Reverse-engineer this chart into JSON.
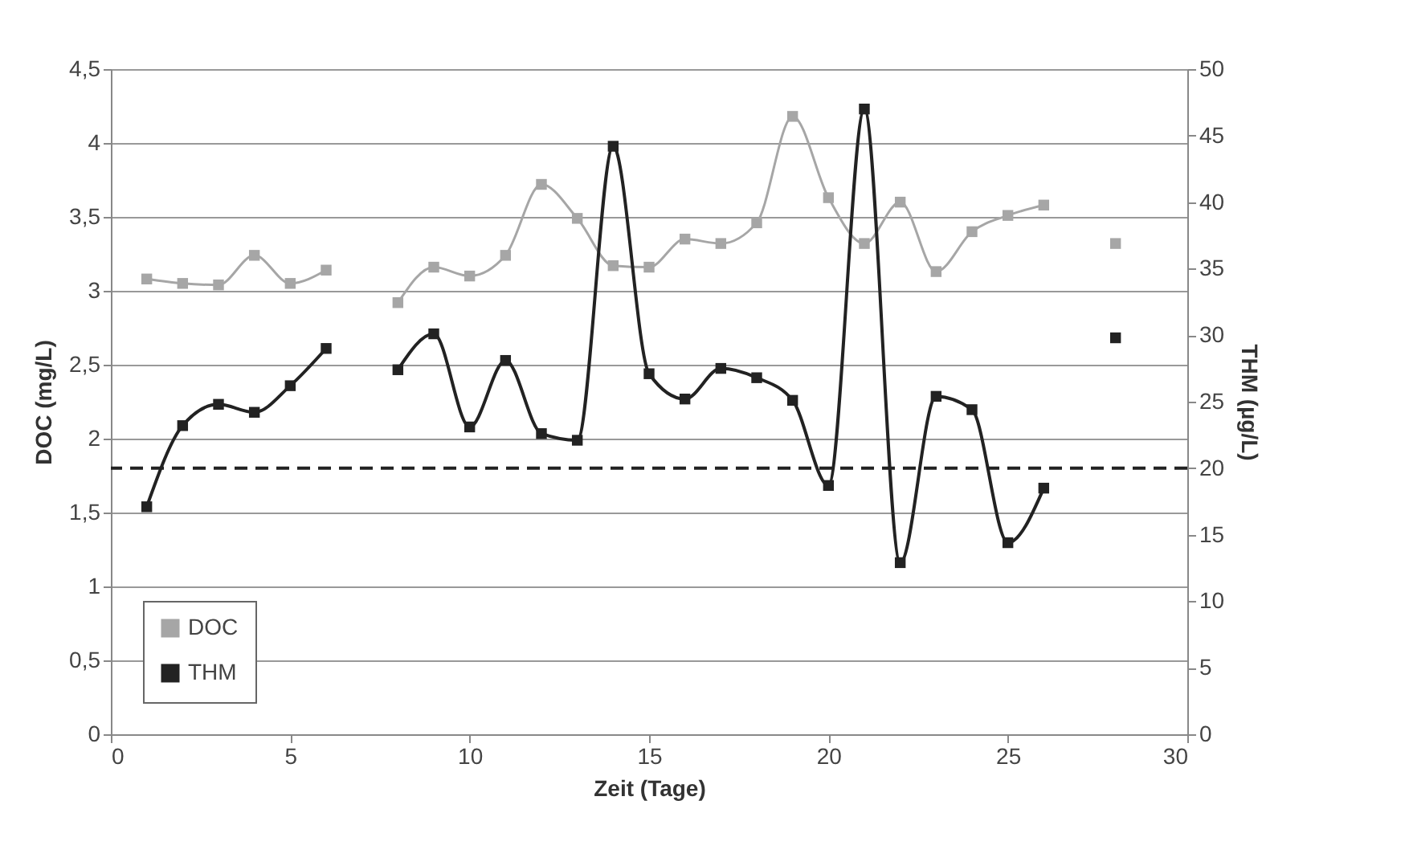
{
  "chart_data": {
    "type": "line",
    "xlabel": "Zeit (Tage)",
    "ylabel": "DOC (mg/L)",
    "y2label": "THM (µg/L)",
    "x": [
      1,
      2,
      3,
      4,
      5,
      6,
      7,
      8,
      9,
      10,
      11,
      12,
      13,
      14,
      15,
      16,
      17,
      18,
      19,
      20,
      21,
      22,
      23,
      24,
      25,
      26,
      27,
      28
    ],
    "series": [
      {
        "name": "DOC",
        "color": "#a6a6a6",
        "values": [
          3.08,
          3.05,
          3.04,
          3.24,
          3.05,
          3.14,
          null,
          2.92,
          3.16,
          3.1,
          3.24,
          3.72,
          3.49,
          3.17,
          3.16,
          3.35,
          3.32,
          3.46,
          4.18,
          3.63,
          3.32,
          3.6,
          3.13,
          3.4,
          3.51,
          3.58,
          null,
          3.32
        ]
      },
      {
        "name": "THM",
        "color": "#222222",
        "axis": "y2",
        "values": [
          17.1,
          23.2,
          24.8,
          24.2,
          26.2,
          29.0,
          null,
          27.4,
          30.1,
          23.1,
          28.1,
          22.6,
          22.1,
          44.2,
          27.1,
          25.2,
          27.5,
          26.8,
          25.1,
          18.7,
          47.0,
          12.9,
          25.4,
          24.4,
          14.4,
          18.5,
          null,
          29.8
        ]
      }
    ],
    "xlim": [
      0,
      30
    ],
    "xticks": [
      0,
      5,
      10,
      15,
      20,
      25,
      30
    ],
    "ylim": [
      0,
      4.5
    ],
    "yticks": [
      0,
      {
        "value": 0.5,
        "label": "0,5"
      },
      1,
      {
        "value": 1.5,
        "label": "1,5"
      },
      2,
      {
        "value": 2.5,
        "label": "2,5"
      },
      3,
      {
        "value": 3.5,
        "label": "3,5"
      },
      4,
      {
        "value": 4.5,
        "label": "4,5"
      }
    ],
    "y2lim": [
      0,
      50
    ],
    "y2ticks": [
      0,
      5,
      10,
      15,
      20,
      25,
      30,
      35,
      40,
      45,
      50
    ],
    "ref_lines": [
      {
        "axis": "y2",
        "value": 20,
        "line_style": "dashed",
        "color": "#222222"
      }
    ],
    "grid": "y",
    "legend": "bottom left",
    "marker": "square"
  }
}
